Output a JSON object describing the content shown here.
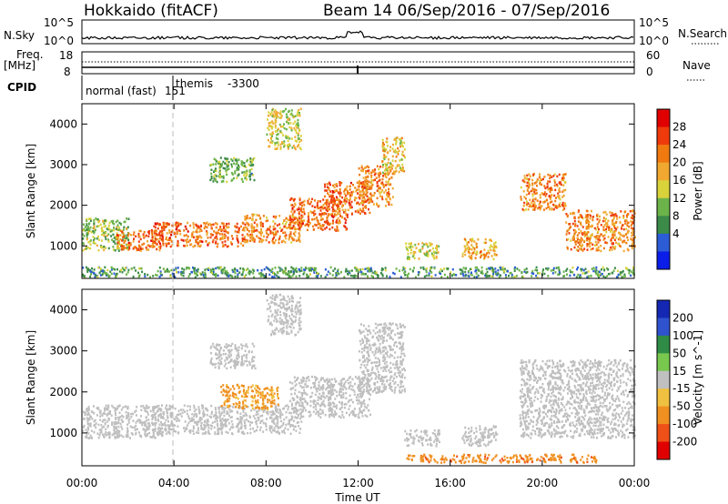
{
  "header": {
    "radar": "Hokkaido (fitACF)",
    "beam_info": "Beam 14  06/Sep/2016 - 07/Sep/2016"
  },
  "strip": {
    "nsky_label": "N.Sky",
    "nsky_ticks": [
      "10^5",
      "10^0"
    ],
    "nsearch_label": "N.Search",
    "freq_label_1": "Freq.",
    "freq_label_2": "[MHz]",
    "freq_ticks": [
      "18",
      "8"
    ],
    "nave_ticks": [
      "60",
      "0"
    ],
    "nave_label": "Nave",
    "cpid_label": "CPID",
    "cpid_segments": [
      {
        "name": "normal (fast)",
        "id": "151"
      },
      {
        "name": "themis",
        "id": "-3300"
      }
    ]
  },
  "axes": {
    "ylabel": "Slant Range [km]",
    "xlabel": "Time UT",
    "x_ticks": [
      "00:00",
      "04:00",
      "08:00",
      "12:00",
      "16:00",
      "20:00",
      "00:00"
    ],
    "y_ticks": [
      "1000",
      "2000",
      "3000",
      "4000"
    ]
  },
  "colors": {
    "power_scale": [
      "#0b1de8",
      "#2c5dd6",
      "#3b8a48",
      "#6cb44a",
      "#d8d23b",
      "#f0a830",
      "#f07a10",
      "#ef3a0c",
      "#e00000"
    ],
    "velocity_scale": [
      "#1428b4",
      "#2f52cf",
      "#2f8c46",
      "#78c84e",
      "#c0c0c0",
      "#f0c040",
      "#f09020",
      "#ef5018",
      "#e00000"
    ],
    "gray": "#bfbfbf"
  },
  "chart_data": [
    {
      "type": "heatmap",
      "title": "Power",
      "ylabel": "Slant Range [km]",
      "xlabel": "",
      "xlim": [
        0,
        24
      ],
      "ylim": [
        200,
        4500
      ],
      "x_unit": "hours UT",
      "colorbar": {
        "label": "Power [dB]",
        "range": [
          0,
          32
        ],
        "ticks": [
          "4",
          "8",
          "12",
          "16",
          "20",
          "24",
          "28"
        ]
      },
      "regions": [
        {
          "t": [
            0.0,
            2.0
          ],
          "r": [
            900,
            1700
          ],
          "level": 14
        },
        {
          "t": [
            1.5,
            3.5
          ],
          "r": [
            900,
            1400
          ],
          "level": 24
        },
        {
          "t": [
            3.0,
            7.0
          ],
          "r": [
            1000,
            1600
          ],
          "level": 24
        },
        {
          "t": [
            7.0,
            9.5
          ],
          "r": [
            1100,
            1800
          ],
          "level": 22
        },
        {
          "t": [
            9.0,
            11.5
          ],
          "r": [
            1400,
            2200
          ],
          "level": 24
        },
        {
          "t": [
            10.5,
            12.5
          ],
          "r": [
            1800,
            2600
          ],
          "level": 24
        },
        {
          "t": [
            12.0,
            13.5
          ],
          "r": [
            2000,
            3000
          ],
          "level": 22
        },
        {
          "t": [
            13.0,
            14.0
          ],
          "r": [
            2800,
            3700
          ],
          "level": 18
        },
        {
          "t": [
            5.5,
            7.5
          ],
          "r": [
            2600,
            3200
          ],
          "level": 12
        },
        {
          "t": [
            8.0,
            9.5
          ],
          "r": [
            3400,
            4400
          ],
          "level": 16
        },
        {
          "t": [
            14.0,
            15.5
          ],
          "r": [
            700,
            1100
          ],
          "level": 16
        },
        {
          "t": [
            16.5,
            18.0
          ],
          "r": [
            700,
            1200
          ],
          "level": 20
        },
        {
          "t": [
            19.0,
            21.0
          ],
          "r": [
            1900,
            2800
          ],
          "level": 22
        },
        {
          "t": [
            21.0,
            24.0
          ],
          "r": [
            900,
            1900
          ],
          "level": 22
        },
        {
          "t": [
            0.0,
            24.0
          ],
          "r": [
            250,
            500
          ],
          "level": 10
        }
      ]
    },
    {
      "type": "heatmap",
      "title": "Velocity",
      "ylabel": "Slant Range [km]",
      "xlabel": "Time UT",
      "xlim": [
        0,
        24
      ],
      "ylim": [
        200,
        4500
      ],
      "x_unit": "hours UT",
      "colorbar": {
        "label": "Velocity [m s^-1]",
        "range": [
          -250,
          250
        ],
        "ticks": [
          "200",
          "100",
          "50",
          "15",
          "-15",
          "-50",
          "-100",
          "-200"
        ]
      },
      "regions": [
        {
          "t": [
            0.0,
            3.5
          ],
          "r": [
            900,
            1700
          ],
          "v": 0
        },
        {
          "t": [
            3.0,
            9.5
          ],
          "r": [
            1000,
            1700
          ],
          "v": 0
        },
        {
          "t": [
            9.0,
            12.5
          ],
          "r": [
            1400,
            2400
          ],
          "v": 0
        },
        {
          "t": [
            12.0,
            14.0
          ],
          "r": [
            2000,
            3700
          ],
          "v": 0
        },
        {
          "t": [
            5.5,
            7.5
          ],
          "r": [
            2600,
            3200
          ],
          "v": 0
        },
        {
          "t": [
            8.0,
            9.5
          ],
          "r": [
            3400,
            4400
          ],
          "v": 0
        },
        {
          "t": [
            14.0,
            15.5
          ],
          "r": [
            700,
            1100
          ],
          "v": 0
        },
        {
          "t": [
            16.5,
            18.0
          ],
          "r": [
            700,
            1200
          ],
          "v": 0
        },
        {
          "t": [
            19.0,
            24.0
          ],
          "r": [
            900,
            2800
          ],
          "v": 0
        },
        {
          "t": [
            14.0,
            22.5
          ],
          "r": [
            300,
            500
          ],
          "v": -60
        },
        {
          "t": [
            6.0,
            8.5
          ],
          "r": [
            1600,
            2200
          ],
          "v": -40
        }
      ]
    }
  ]
}
